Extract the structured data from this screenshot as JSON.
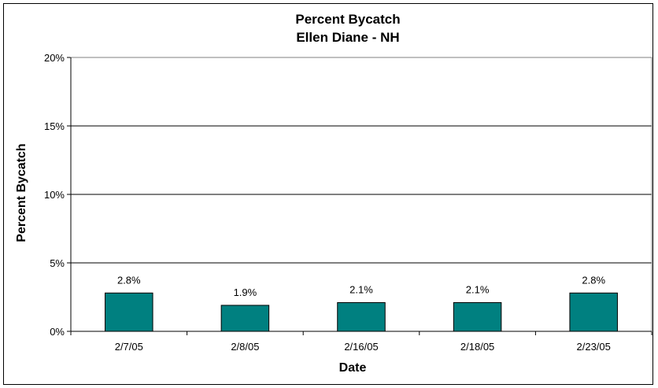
{
  "chart_data": {
    "type": "bar",
    "title": "Percent Bycatch",
    "subtitle": "Ellen Diane - NH",
    "xlabel": "Date",
    "ylabel": "Percent Bycatch",
    "categories": [
      "2/7/05",
      "2/8/05",
      "2/16/05",
      "2/18/05",
      "2/23/05"
    ],
    "values": [
      2.8,
      1.9,
      2.1,
      2.1,
      2.8
    ],
    "data_labels": [
      "2.8%",
      "1.9%",
      "2.1%",
      "2.1%",
      "2.8%"
    ],
    "ylim": [
      0,
      20
    ],
    "yticks": [
      0,
      5,
      10,
      15,
      20
    ],
    "ytick_labels": [
      "0%",
      "5%",
      "10%",
      "15%",
      "20%"
    ],
    "grid": "horizontal",
    "legend": "none",
    "bar_color": "#008080"
  }
}
